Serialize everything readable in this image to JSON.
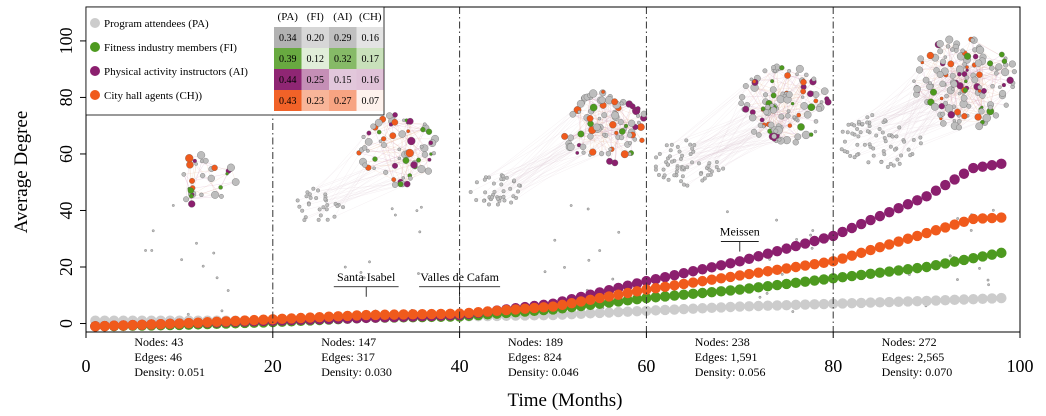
{
  "chart_data": {
    "type": "scatter",
    "xlabel": "Time (Months)",
    "ylabel": "Average Degree",
    "xlim": [
      0,
      100
    ],
    "ylim": [
      -3,
      112
    ],
    "x_ticks": [
      0,
      20,
      40,
      60,
      80,
      100
    ],
    "y_ticks": [
      0,
      20,
      40,
      60,
      80,
      100
    ],
    "period_dividers": [
      20,
      40,
      60,
      80
    ],
    "grid": false,
    "legend_placement": "top-left",
    "series": [
      {
        "name": "Program attendees (PA)",
        "key": "PA",
        "color": "#cccccc",
        "points": [
          [
            1,
            1
          ],
          [
            10,
            1
          ],
          [
            20,
            1
          ],
          [
            30,
            2
          ],
          [
            40,
            2.5
          ],
          [
            50,
            3
          ],
          [
            60,
            4.5
          ],
          [
            70,
            6
          ],
          [
            80,
            7
          ],
          [
            90,
            8
          ],
          [
            98,
            9
          ]
        ]
      },
      {
        "name": "Fitness industry members (FI)",
        "key": "FI",
        "color": "#4d9a1f",
        "points": [
          [
            1,
            -1
          ],
          [
            10,
            -0.5
          ],
          [
            20,
            0.5
          ],
          [
            30,
            2
          ],
          [
            40,
            2.5
          ],
          [
            50,
            5
          ],
          [
            60,
            9
          ],
          [
            70,
            12
          ],
          [
            80,
            16
          ],
          [
            90,
            20
          ],
          [
            98,
            25
          ]
        ]
      },
      {
        "name": "Physical activity instructors (AI)",
        "key": "AI",
        "color": "#8b1f6e",
        "points": [
          [
            1,
            -1
          ],
          [
            10,
            0
          ],
          [
            20,
            1
          ],
          [
            30,
            2
          ],
          [
            40,
            3
          ],
          [
            50,
            7
          ],
          [
            60,
            15
          ],
          [
            70,
            22
          ],
          [
            80,
            31
          ],
          [
            90,
            45
          ],
          [
            95,
            55
          ],
          [
            98,
            56.5
          ]
        ]
      },
      {
        "name": "City hall agents (CH))",
        "key": "CH",
        "color": "#f05a1c",
        "points": [
          [
            1,
            -1
          ],
          [
            10,
            0
          ],
          [
            20,
            1.5
          ],
          [
            30,
            3
          ],
          [
            40,
            3.5
          ],
          [
            50,
            6
          ],
          [
            60,
            12
          ],
          [
            70,
            17
          ],
          [
            80,
            22
          ],
          [
            90,
            32
          ],
          [
            95,
            37
          ],
          [
            98,
            37.5
          ]
        ]
      }
    ],
    "matrix": {
      "headers": [
        "(PA)",
        "(FI)",
        "(AI)",
        "(CH)"
      ],
      "rows": [
        [
          "0.34",
          "0.20",
          "0.29",
          "0.16"
        ],
        [
          "0.39",
          "0.12",
          "0.32",
          "0.17"
        ],
        [
          "0.44",
          "0.25",
          "0.15",
          "0.16"
        ],
        [
          "0.43",
          "0.23",
          "0.27",
          "0.07"
        ]
      ]
    },
    "period_stats": [
      {
        "x": 10,
        "nodes": "Nodes: 43",
        "edges": "Edges: 46",
        "density": "Density: 0.051"
      },
      {
        "x": 30,
        "nodes": "Nodes: 147",
        "edges": "Edges: 317",
        "density": "Density: 0.030"
      },
      {
        "x": 50,
        "nodes": "Nodes: 189",
        "edges": "Edges: 824",
        "density": "Density: 0.046"
      },
      {
        "x": 70,
        "nodes": "Nodes: 238",
        "edges": "Edges: 1,591",
        "density": "Density: 0.056"
      },
      {
        "x": 90,
        "nodes": "Nodes: 272",
        "edges": "Edges: 2,565",
        "density": "Density: 0.070"
      }
    ],
    "annotations": [
      {
        "text": "Santa Isabel",
        "x": 30,
        "y": 13
      },
      {
        "text": "Valles de Cafam",
        "x": 40,
        "y": 13
      },
      {
        "text": "Meissen",
        "x": 70,
        "y": 29
      }
    ]
  }
}
